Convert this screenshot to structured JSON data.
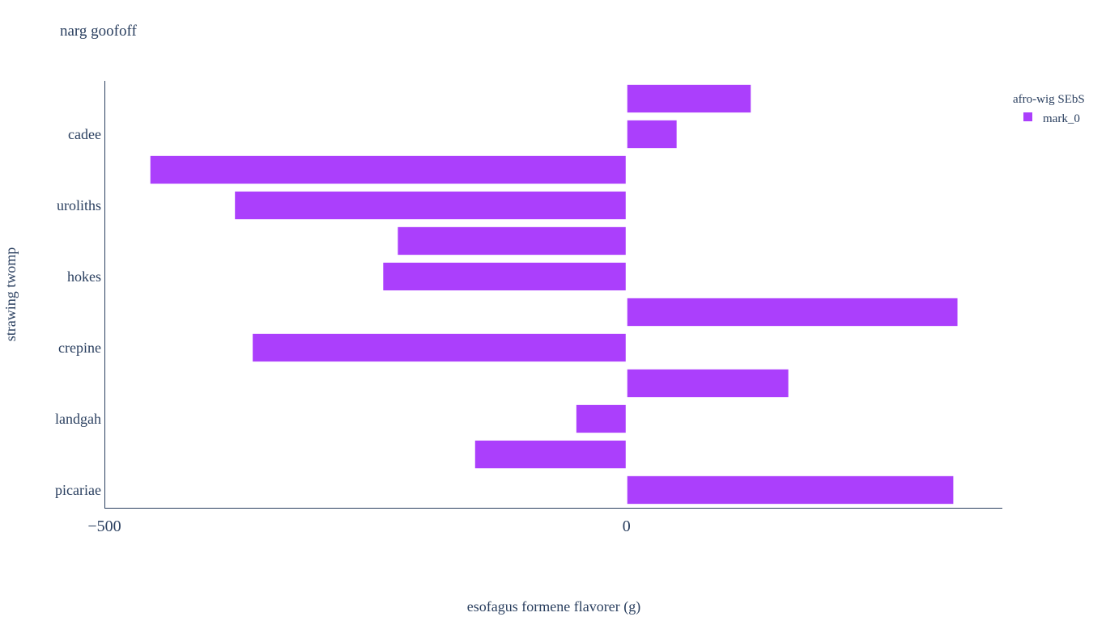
{
  "chart_data": {
    "type": "bar",
    "orientation": "horizontal",
    "title": "narg goofoff",
    "xlabel": "esofagus formene flavorer (g)",
    "ylabel": "strawing twomp",
    "categories": [
      "picariae",
      "",
      "landgah",
      "",
      "crepine",
      "",
      "hokes",
      "",
      "uroliths",
      "",
      "cadee",
      ""
    ],
    "ytick_labels": [
      "picariae",
      "landgah",
      "crepine",
      "hokes",
      "uroliths",
      "cadee"
    ],
    "xtick_labels": [
      "−500",
      "0"
    ],
    "xtick_values": [
      -500,
      0
    ],
    "xlim": [
      -500,
      360
    ],
    "grid": false,
    "legend": {
      "title": "afro-wig SEbS",
      "position": "top-right"
    },
    "series": [
      {
        "name": "mark_0",
        "color": "#ab3ffc",
        "values": [
          313,
          -145,
          -48,
          155,
          -358,
          317,
          -233,
          -219,
          -375,
          -456,
          48,
          119
        ]
      }
    ]
  }
}
